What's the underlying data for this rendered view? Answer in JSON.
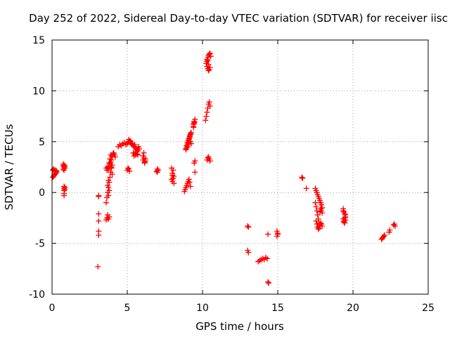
{
  "chart_data": {
    "type": "scatter",
    "title": "Day 252 of 2022, Sidereal Day-to-day VTEC variation (SDTVAR) for receiver iisc",
    "xlabel": "GPS time / hours",
    "ylabel": "SDTVAR / TECUs",
    "xlim": [
      0,
      25
    ],
    "ylim": [
      -10,
      15
    ],
    "xticks": [
      0,
      5,
      10,
      15,
      20,
      25
    ],
    "yticks": [
      -10,
      -5,
      0,
      5,
      10,
      15
    ],
    "grid": true,
    "marker": "+",
    "marker_color": "#ff0000",
    "series": [
      {
        "name": "SDTVAR",
        "x": [
          0.05,
          0.05,
          0.1,
          0.1,
          0.15,
          0.15,
          0.2,
          0.2,
          0.25,
          0.25,
          0.3,
          0.3,
          0.75,
          0.75,
          0.75,
          0.8,
          0.8,
          0.8,
          0.85,
          0.85,
          0.8,
          0.8,
          0.8,
          0.85,
          0.85,
          0.8,
          0.8,
          3.05,
          3.1,
          3.1,
          3.1,
          3.1,
          3.1,
          3.1,
          3.6,
          3.65,
          3.7,
          3.75,
          3.8,
          3.6,
          3.65,
          3.7,
          3.75,
          3.8,
          3.85,
          3.9,
          3.95,
          4.0,
          3.6,
          3.65,
          3.7,
          3.75,
          3.8,
          3.85,
          3.9,
          3.95,
          4.0,
          3.8,
          3.85,
          3.9,
          3.75,
          3.7,
          3.75,
          3.8,
          4.0,
          4.05,
          4.1,
          4.15,
          4.2,
          3.9,
          3.95,
          4.0,
          4.4,
          4.5,
          4.6,
          4.7,
          4.8,
          4.9,
          5.0,
          5.05,
          5.1,
          5.15,
          5.2,
          5.25,
          5.3,
          5.35,
          5.4,
          5.45,
          5.5,
          5.55,
          5.6,
          5.65,
          5.7,
          5.75,
          5.8,
          5.4,
          5.5,
          5.6,
          5.7,
          5.45,
          5.55,
          5.65,
          5.0,
          5.05,
          5.1,
          5.15,
          6.05,
          6.1,
          6.15,
          6.2,
          6.05,
          6.1,
          6.15,
          6.2,
          6.95,
          7.0,
          7.05,
          7.0,
          7.95,
          8.0,
          8.05,
          8.1,
          7.95,
          8.0,
          8.05,
          8.1,
          8.0,
          8.9,
          8.95,
          9.0,
          9.05,
          9.1,
          9.15,
          9.2,
          9.0,
          9.05,
          9.1,
          9.15,
          9.2,
          9.25,
          8.9,
          8.95,
          9.0,
          9.05,
          9.1,
          9.15,
          9.2,
          9.25,
          8.8,
          8.85,
          8.9,
          8.95,
          9.0,
          9.05,
          9.1,
          9.15,
          9.2,
          9.4,
          9.45,
          9.5,
          9.4,
          9.45,
          9.5,
          9.45,
          9.5,
          9.4,
          9.45,
          10.2,
          10.25,
          10.3,
          10.35,
          10.4,
          10.45,
          10.5,
          10.3,
          10.35,
          10.4,
          10.45,
          10.5,
          10.3,
          10.35,
          10.4,
          10.45,
          10.5,
          10.3,
          10.35,
          10.4,
          10.45,
          10.5,
          10.55,
          10.25,
          10.3,
          10.35,
          10.4,
          13.0,
          13.05,
          13.0,
          13.05,
          13.7,
          13.8,
          13.9,
          14.0,
          14.1,
          14.2,
          14.3,
          14.35,
          14.4,
          14.35,
          14.95,
          15.0,
          14.95,
          15.0,
          16.6,
          16.65,
          16.9,
          17.5,
          17.55,
          17.6,
          17.65,
          17.7,
          17.75,
          17.8,
          17.85,
          17.9,
          17.95,
          17.5,
          17.55,
          17.6,
          17.65,
          17.7,
          17.75,
          17.8,
          17.55,
          17.6,
          17.65,
          17.7,
          17.75,
          17.8,
          17.85,
          17.9,
          17.95,
          17.8,
          17.85,
          17.9,
          17.95,
          19.35,
          19.4,
          19.45,
          19.5,
          19.35,
          19.4,
          19.45,
          19.5,
          19.35,
          19.4,
          19.45,
          19.5,
          21.9,
          21.95,
          22.0,
          22.05,
          22.1,
          22.4,
          22.45,
          22.7,
          22.75,
          22.8
        ],
        "y": [
          1.5,
          2.2,
          1.6,
          2.3,
          1.7,
          2.2,
          1.8,
          2.1,
          1.9,
          2.2,
          2.0,
          2.1,
          2.3,
          2.6,
          2.8,
          2.5,
          2.7,
          2.2,
          2.4,
          2.6,
          0.4,
          0.6,
          -0.1,
          0.5,
          0.3,
          -0.3,
          0.2,
          -7.3,
          -0.4,
          -2.1,
          -2.8,
          -3.8,
          -4.2,
          -0.3,
          -2.7,
          -2.5,
          -2.2,
          -2.6,
          -2.4,
          2.4,
          2.2,
          2.5,
          2.3,
          2.6,
          2.8,
          3.0,
          3.2,
          3.5,
          -1.0,
          -0.5,
          0.0,
          0.5,
          1.0,
          1.5,
          2.0,
          2.5,
          1.8,
          2.9,
          3.3,
          3.7,
          1.2,
          0.7,
          -0.3,
          0.2,
          3.6,
          3.8,
          3.9,
          3.7,
          3.5,
          2.0,
          2.4,
          2.7,
          4.5,
          4.7,
          4.6,
          4.8,
          4.9,
          4.7,
          4.8,
          5.0,
          5.2,
          5.0,
          5.1,
          4.9,
          4.7,
          4.8,
          4.6,
          4.5,
          4.7,
          4.4,
          4.2,
          4.3,
          4.1,
          4.5,
          4.3,
          3.9,
          3.8,
          4.0,
          3.7,
          3.6,
          3.7,
          3.8,
          2.2,
          2.4,
          2.3,
          2.1,
          3.2,
          3.4,
          3.0,
          3.3,
          3.6,
          3.9,
          2.9,
          3.1,
          2.1,
          2.3,
          2.2,
          2.0,
          1.3,
          1.9,
          2.2,
          1.6,
          2.4,
          1.1,
          1.4,
          0.9,
          1.7,
          4.3,
          4.6,
          4.9,
          5.1,
          5.3,
          5.6,
          5.8,
          4.5,
          4.8,
          5.0,
          5.4,
          5.7,
          5.9,
          4.2,
          4.4,
          4.7,
          4.9,
          5.2,
          5.5,
          5.0,
          4.8,
          0.1,
          0.3,
          0.5,
          0.7,
          0.9,
          1.1,
          1.3,
          1.0,
          0.6,
          6.5,
          6.9,
          7.2,
          6.7,
          7.0,
          2.0,
          2.9,
          3.1,
          6.4,
          6.8,
          7.1,
          7.5,
          7.9,
          8.3,
          8.7,
          8.9,
          8.5,
          3.2,
          3.4,
          3.5,
          3.3,
          3.1,
          12.4,
          12.2,
          12.0,
          12.1,
          12.3,
          13.1,
          13.3,
          13.5,
          13.6,
          13.7,
          13.4,
          12.7,
          12.9,
          13.0,
          12.6,
          -3.3,
          -3.4,
          -5.7,
          -5.9,
          -6.8,
          -6.7,
          -6.6,
          -6.5,
          -6.6,
          -6.4,
          -6.5,
          -8.8,
          -8.9,
          -4.1,
          -3.8,
          -4.1,
          -4.3,
          -4.0,
          1.5,
          1.4,
          0.4,
          0.4,
          0.2,
          0.0,
          -0.2,
          -0.4,
          -0.6,
          -0.8,
          -1.0,
          -1.2,
          -1.5,
          -1.0,
          -1.4,
          -1.8,
          -2.2,
          -2.6,
          -3.0,
          -3.3,
          -2.8,
          -3.1,
          -3.4,
          -3.6,
          -3.5,
          -3.2,
          -3.0,
          -3.1,
          -3.3,
          -1.9,
          -1.6,
          -1.8,
          -2.0,
          -1.6,
          -1.9,
          -2.1,
          -2.4,
          -2.6,
          -2.8,
          -2.5,
          -2.2,
          -1.8,
          -2.9,
          -3.0,
          -2.7,
          -4.6,
          -4.5,
          -4.4,
          -4.3,
          -4.2,
          -3.9,
          -3.7,
          -3.2,
          -3.1,
          -3.3
        ]
      }
    ]
  }
}
